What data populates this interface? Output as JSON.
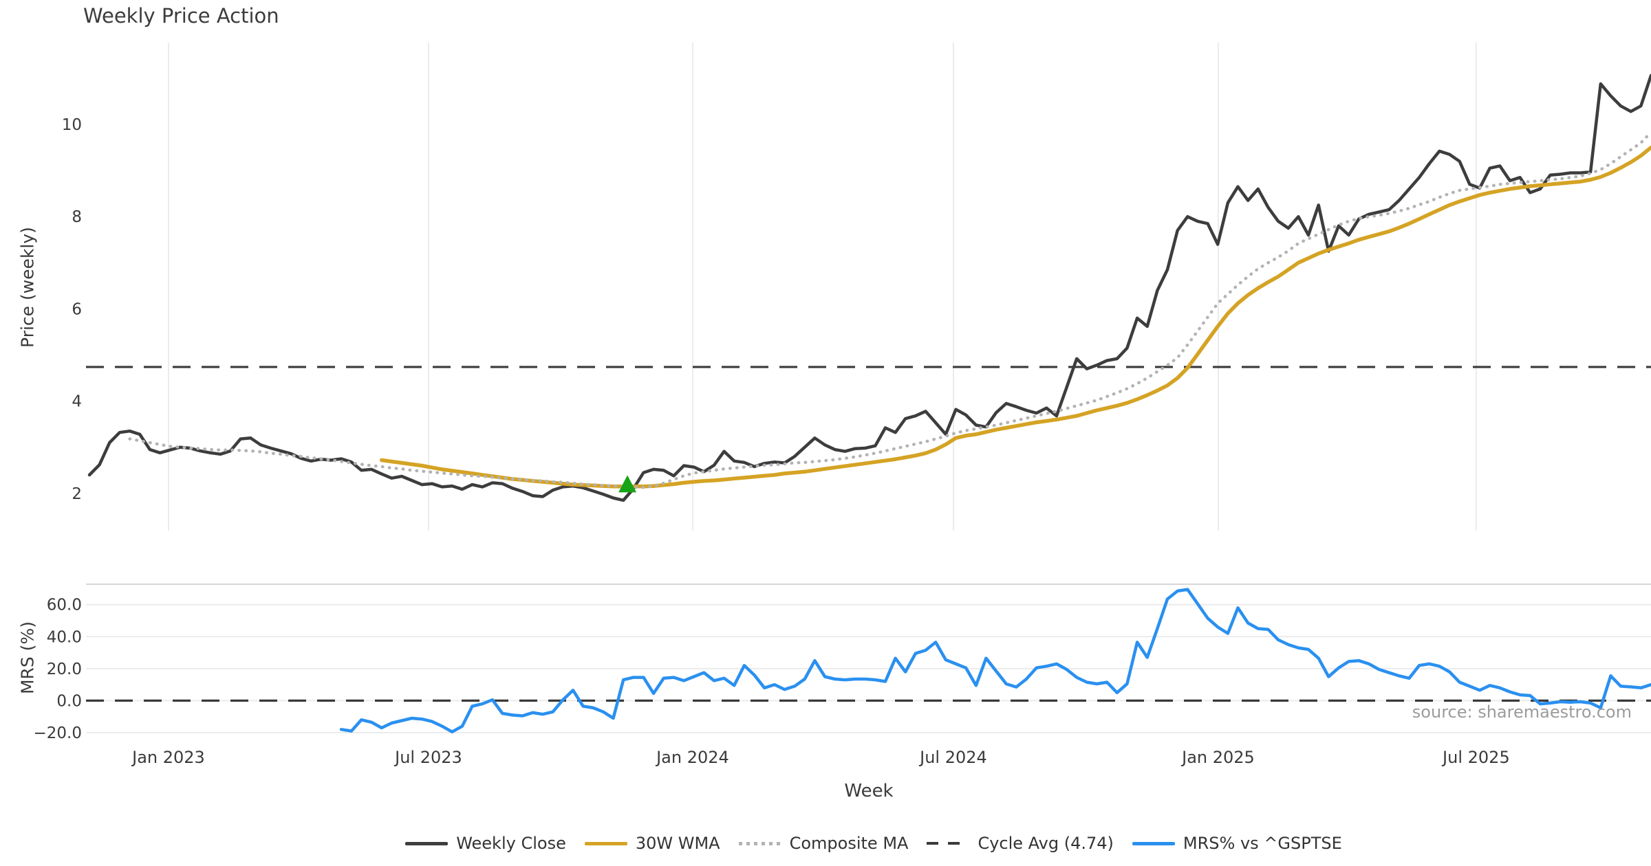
{
  "title": "Weekly Price Action",
  "source_note": "source: sharemaestro.com",
  "colors": {
    "close": "#3d3d3d",
    "wma": "#d5a324",
    "composite": "#b3b3b3",
    "cycle": "#3a3a3a",
    "mrs": "#2a90f0",
    "marker": "#17a317",
    "grid": "#ebebeb",
    "panel_border": "#d6d6d6",
    "axis_text": "#3a3a3a",
    "source_text": "#9b9b9b"
  },
  "price_panel": {
    "ylabel": "Price (weekly)",
    "yticks": [
      {
        "label": "2",
        "value": 2
      },
      {
        "label": "4",
        "value": 4
      },
      {
        "label": "6",
        "value": 6
      },
      {
        "label": "8",
        "value": 8
      },
      {
        "label": "10",
        "value": 10
      }
    ],
    "cycle_avg_value": 4.74
  },
  "mrs_panel": {
    "ylabel": "MRS (%)",
    "yticks": [
      {
        "label": "60.0",
        "value": 60
      },
      {
        "label": "40.0",
        "value": 40
      },
      {
        "label": "20.0",
        "value": 20
      },
      {
        "label": "0.0",
        "value": 0
      },
      {
        "label": "−20.0",
        "value": -20
      }
    ],
    "zero_value": 0
  },
  "x_axis": {
    "label": "Week",
    "ticks": [
      {
        "label": "Jan 2023",
        "week": 7.85
      },
      {
        "label": "Jul 2023",
        "week": 33.66
      },
      {
        "label": "Jan 2024",
        "week": 59.88
      },
      {
        "label": "Jul 2024",
        "week": 85.76
      },
      {
        "label": "Jan 2025",
        "week": 112.05
      },
      {
        "label": "Jul 2025",
        "week": 137.65
      }
    ]
  },
  "legend": {
    "items": [
      {
        "key": "close",
        "label": "Weekly Close"
      },
      {
        "key": "wma",
        "label": "30W WMA"
      },
      {
        "key": "composite",
        "label": "Composite MA"
      },
      {
        "key": "cycle",
        "label": "Cycle Avg (4.74)"
      },
      {
        "key": "mrs",
        "label": "MRS% vs ^GSPTSE"
      }
    ]
  },
  "chart_data": {
    "type": "line",
    "x_unit": "week_index",
    "tick_labels": [
      "Jan 2023",
      "Jul 2023",
      "Jan 2024",
      "Jul 2024",
      "Jan 2025",
      "Jul 2025"
    ],
    "panels": [
      {
        "id": "price",
        "ylabel": "Price (weekly)",
        "yticks": [
          2,
          4,
          6,
          8,
          10
        ],
        "ylim": [
          1.25,
          11.75
        ],
        "grid": "vertical"
      },
      {
        "id": "mrs",
        "ylabel": "MRS (%)",
        "yticks": [
          60,
          40,
          20,
          0,
          -20
        ],
        "ylim": [
          -25,
          73
        ],
        "grid": "horizontal"
      }
    ],
    "hlines": [
      {
        "panel": "price",
        "value": 4.74,
        "label": "Cycle Avg (4.74)",
        "style": "dashed",
        "color_key": "cycle"
      },
      {
        "panel": "mrs",
        "value": 0,
        "style": "dashed",
        "color_key": "cycle"
      }
    ],
    "markers": [
      {
        "panel": "price",
        "name": "buy-signal",
        "shape": "triangle-up",
        "week": 53.4,
        "price": 2.2,
        "color_key": "marker"
      }
    ],
    "series": [
      {
        "name": "Weekly Close",
        "panel": "price",
        "color_key": "close",
        "width": 4.5,
        "dash": null,
        "start_week": 0,
        "values": [
          2.4,
          2.62,
          3.1,
          3.32,
          3.35,
          3.28,
          2.95,
          2.88,
          2.94,
          3.0,
          2.98,
          2.92,
          2.88,
          2.85,
          2.92,
          3.18,
          3.2,
          3.05,
          2.98,
          2.92,
          2.86,
          2.76,
          2.7,
          2.74,
          2.72,
          2.75,
          2.68,
          2.5,
          2.52,
          2.42,
          2.33,
          2.37,
          2.28,
          2.19,
          2.21,
          2.14,
          2.16,
          2.09,
          2.19,
          2.14,
          2.23,
          2.21,
          2.11,
          2.04,
          1.95,
          1.93,
          2.07,
          2.14,
          2.16,
          2.12,
          2.05,
          1.98,
          1.9,
          1.85,
          2.1,
          2.45,
          2.52,
          2.5,
          2.38,
          2.6,
          2.57,
          2.47,
          2.61,
          2.91,
          2.7,
          2.67,
          2.58,
          2.65,
          2.68,
          2.66,
          2.8,
          3.0,
          3.2,
          3.05,
          2.95,
          2.91,
          2.97,
          2.98,
          3.03,
          3.42,
          3.32,
          3.62,
          3.68,
          3.78,
          3.53,
          3.28,
          3.82,
          3.7,
          3.48,
          3.44,
          3.75,
          3.95,
          3.88,
          3.8,
          3.74,
          3.85,
          3.68,
          4.3,
          4.92,
          4.7,
          4.78,
          4.88,
          4.92,
          5.15,
          5.8,
          5.62,
          6.4,
          6.85,
          7.7,
          8.0,
          7.9,
          7.85,
          7.4,
          8.3,
          8.65,
          8.35,
          8.6,
          8.2,
          7.9,
          7.75,
          8.0,
          7.6,
          8.25,
          7.25,
          7.8,
          7.6,
          7.95,
          8.05,
          8.1,
          8.15,
          8.35,
          8.6,
          8.85,
          9.15,
          9.42,
          9.35,
          9.2,
          8.7,
          8.62,
          9.05,
          9.1,
          8.78,
          8.85,
          8.52,
          8.6,
          8.9,
          8.92,
          8.95,
          8.95,
          8.97,
          10.88,
          10.62,
          10.4,
          10.28,
          10.4,
          11.06
        ]
      },
      {
        "name": "30W WMA",
        "panel": "price",
        "color_key": "wma",
        "width": 5.5,
        "dash": null,
        "start_week": 29,
        "values": [
          2.72,
          2.69,
          2.66,
          2.63,
          2.6,
          2.56,
          2.52,
          2.49,
          2.46,
          2.43,
          2.4,
          2.37,
          2.34,
          2.31,
          2.29,
          2.27,
          2.25,
          2.23,
          2.21,
          2.19,
          2.18,
          2.17,
          2.16,
          2.15,
          2.15,
          2.15,
          2.15,
          2.16,
          2.18,
          2.2,
          2.23,
          2.25,
          2.27,
          2.28,
          2.3,
          2.32,
          2.34,
          2.36,
          2.38,
          2.4,
          2.43,
          2.45,
          2.47,
          2.5,
          2.53,
          2.56,
          2.59,
          2.62,
          2.65,
          2.68,
          2.71,
          2.74,
          2.78,
          2.82,
          2.87,
          2.95,
          3.06,
          3.2,
          3.25,
          3.28,
          3.33,
          3.38,
          3.42,
          3.46,
          3.5,
          3.54,
          3.57,
          3.6,
          3.64,
          3.68,
          3.74,
          3.8,
          3.85,
          3.9,
          3.96,
          4.04,
          4.13,
          4.23,
          4.34,
          4.5,
          4.72,
          5.02,
          5.32,
          5.62,
          5.9,
          6.12,
          6.3,
          6.45,
          6.58,
          6.7,
          6.85,
          7.0,
          7.1,
          7.2,
          7.28,
          7.35,
          7.42,
          7.5,
          7.56,
          7.62,
          7.68,
          7.76,
          7.85,
          7.95,
          8.05,
          8.15,
          8.25,
          8.33,
          8.4,
          8.47,
          8.52,
          8.56,
          8.6,
          8.63,
          8.66,
          8.68,
          8.7,
          8.72,
          8.74,
          8.76,
          8.8,
          8.86,
          8.95,
          9.06,
          9.18,
          9.32,
          9.5
        ]
      },
      {
        "name": "Composite MA",
        "panel": "price",
        "color_key": "composite",
        "width": 4.5,
        "dash": "0.5 9.5",
        "start_week": 4,
        "values": [
          3.18,
          3.14,
          3.1,
          3.06,
          3.02,
          3.0,
          2.98,
          2.97,
          2.95,
          2.94,
          2.94,
          2.93,
          2.92,
          2.9,
          2.87,
          2.85,
          2.82,
          2.8,
          2.77,
          2.75,
          2.72,
          2.69,
          2.66,
          2.63,
          2.6,
          2.58,
          2.55,
          2.53,
          2.5,
          2.48,
          2.46,
          2.44,
          2.42,
          2.4,
          2.38,
          2.37,
          2.35,
          2.33,
          2.31,
          2.3,
          2.28,
          2.27,
          2.25,
          2.24,
          2.22,
          2.2,
          2.19,
          2.17,
          2.16,
          2.15,
          2.14,
          2.13,
          2.16,
          2.22,
          2.3,
          2.38,
          2.44,
          2.47,
          2.5,
          2.53,
          2.55,
          2.57,
          2.59,
          2.61,
          2.62,
          2.64,
          2.66,
          2.67,
          2.69,
          2.71,
          2.73,
          2.76,
          2.79,
          2.83,
          2.87,
          2.92,
          2.97,
          3.02,
          3.07,
          3.12,
          3.18,
          3.24,
          3.31,
          3.36,
          3.4,
          3.44,
          3.48,
          3.53,
          3.58,
          3.63,
          3.68,
          3.73,
          3.78,
          3.84,
          3.9,
          3.96,
          4.02,
          4.1,
          4.18,
          4.27,
          4.38,
          4.5,
          4.64,
          4.78,
          4.94,
          5.22,
          5.52,
          5.82,
          6.12,
          6.32,
          6.52,
          6.7,
          6.87,
          7.0,
          7.12,
          7.26,
          7.42,
          7.52,
          7.62,
          7.72,
          7.82,
          7.9,
          7.96,
          8.0,
          8.03,
          8.07,
          8.12,
          8.18,
          8.26,
          8.33,
          8.42,
          8.5,
          8.57,
          8.6,
          8.63,
          8.66,
          8.7,
          8.72,
          8.74,
          8.76,
          8.78,
          8.8,
          8.82,
          8.85,
          8.88,
          8.94,
          9.02,
          9.15,
          9.3,
          9.45,
          9.6,
          9.83
        ]
      },
      {
        "name": "MRS% vs ^GSPTSE",
        "panel": "mrs",
        "color_key": "mrs",
        "width": 4.5,
        "dash": null,
        "start_week": 25,
        "values": [
          -18,
          -19,
          -12,
          -13.5,
          -17,
          -14,
          -12.5,
          -11,
          -11.5,
          -13,
          -16,
          -19.5,
          -16,
          -3.5,
          -2,
          0.5,
          -8,
          -9,
          -9.5,
          -7.5,
          -8.5,
          -7,
          0.5,
          6.5,
          -3.5,
          -4.5,
          -7,
          -11,
          13,
          14.5,
          14.5,
          4.5,
          14,
          14.5,
          12.5,
          15,
          17.5,
          12.5,
          14,
          9.5,
          22,
          16,
          8,
          10,
          7,
          9,
          13.5,
          25,
          15,
          13.5,
          13,
          13.5,
          13.5,
          13,
          12,
          26.5,
          18,
          29.5,
          31.5,
          36.5,
          25.5,
          23,
          20.5,
          9.5,
          26.5,
          18.5,
          10.5,
          8.5,
          13.5,
          20.5,
          21.5,
          23,
          19.5,
          14.5,
          11.5,
          10.5,
          11.5,
          5,
          10.5,
          36.5,
          27,
          45,
          63.5,
          68.5,
          69.5,
          60.5,
          51.5,
          46,
          42,
          58,
          48.5,
          45,
          44.5,
          38,
          35,
          33,
          32,
          26.5,
          15,
          20.5,
          24.5,
          25,
          23,
          19.5,
          17.5,
          15.5,
          14,
          22,
          23,
          21.5,
          18,
          11.5,
          9,
          6.5,
          9.5,
          8,
          5.5,
          3.6,
          3.2,
          -2,
          -1.5,
          -0.7,
          -1,
          -0.7,
          -1.5,
          -4.5,
          15.5,
          9,
          8.6,
          8,
          10
        ]
      }
    ]
  }
}
